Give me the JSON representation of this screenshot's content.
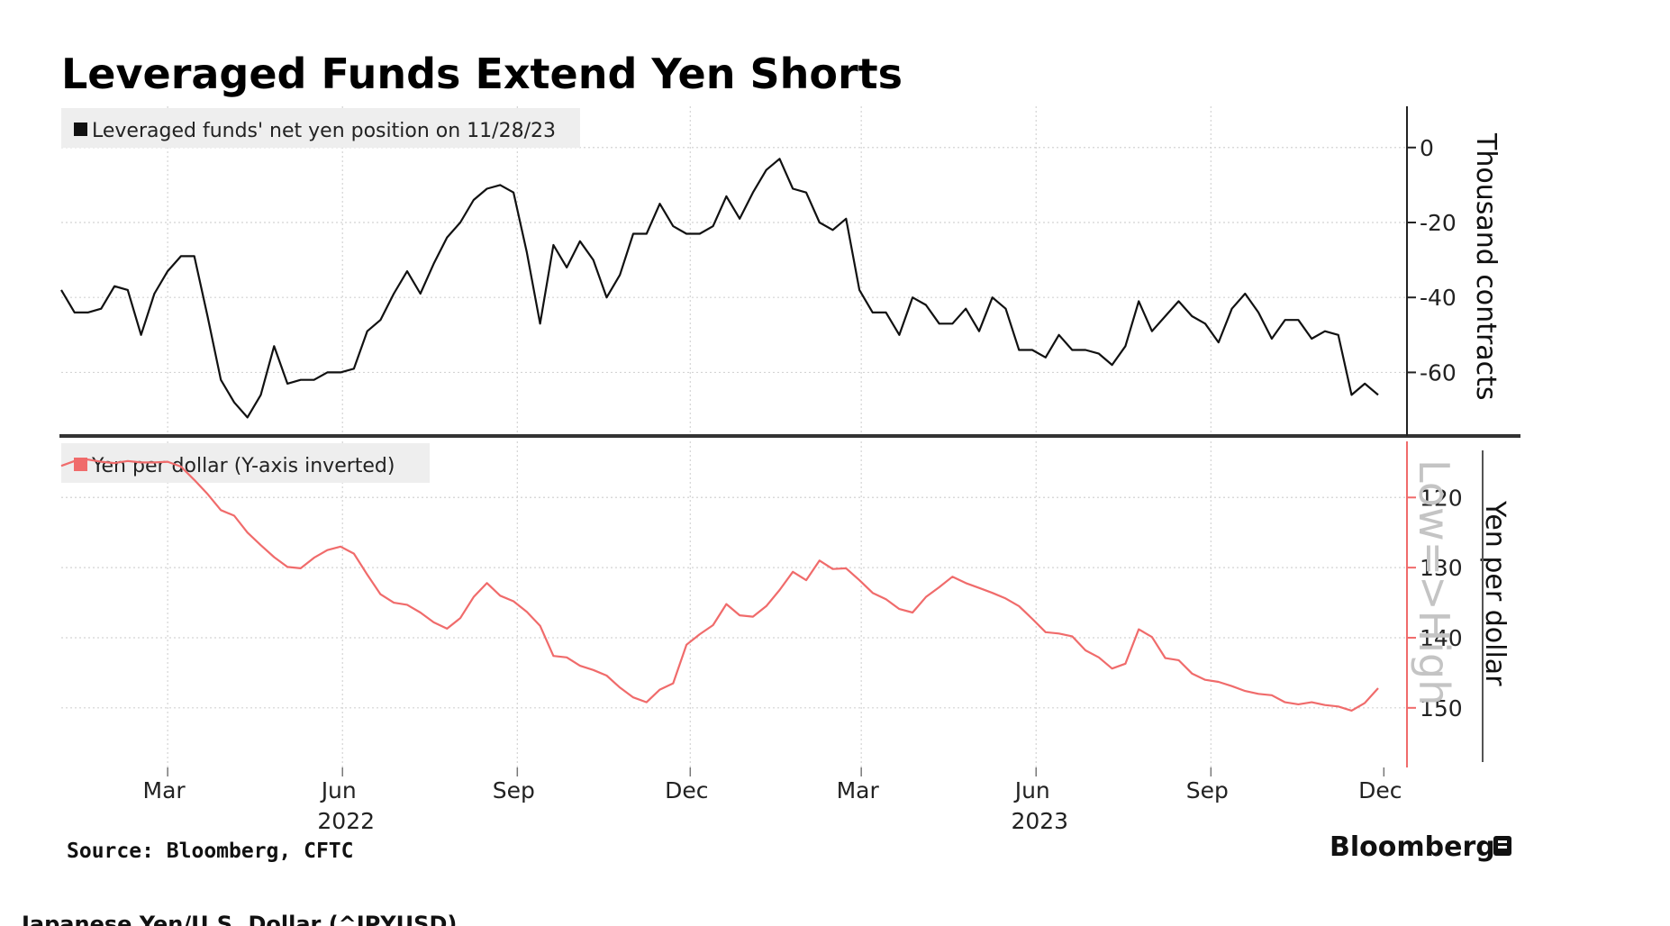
{
  "title": "Leveraged Funds Extend Yen Shorts",
  "source": "Source:  Bloomberg, CFTC",
  "brand": "Bloomberg",
  "footer_label": "Japanese Yen/U.S. Dollar (^JPYUSD)",
  "colors": {
    "series_top": "#111111",
    "series_bottom": "#f06b6b",
    "grid": "#cfcfcf",
    "legend_bg": "#eeeeee"
  },
  "chart_data": [
    {
      "type": "line",
      "legend": "Leveraged funds' net yen position on 11/28/23",
      "ylabel": "Thousand contracts",
      "ylim": [
        -76,
        11
      ],
      "yticks": [
        "0",
        "-20",
        "-40",
        "-60"
      ],
      "yticks_values": [
        0,
        -20,
        -40,
        -60
      ],
      "x_start": "2022-01-04",
      "x_end": "2023-11-28",
      "x_step_days": 7,
      "series": [
        {
          "values": [
            -38,
            -44,
            -44,
            -43,
            -37,
            -38,
            -50,
            -39,
            -33,
            -29,
            -29,
            -45,
            -62,
            -68,
            -72,
            -66,
            -53,
            -63,
            -62,
            -62,
            -60,
            -60,
            -59,
            -49,
            -46,
            -39,
            -33,
            -39,
            -31,
            -24,
            -20,
            -14,
            -11,
            -10,
            -12,
            -28,
            -47,
            -26,
            -32,
            -25,
            -30,
            -40,
            -34,
            -23,
            -23,
            -15,
            -21,
            -23,
            -23,
            -21,
            -13,
            -19,
            -12,
            -6,
            -3,
            -11,
            -12,
            -20,
            -22,
            -19,
            -38,
            -44,
            -44,
            -50,
            -40,
            -42,
            -47,
            -47,
            -43,
            -49,
            -40,
            -43,
            -54,
            -54,
            -56,
            -50,
            -54,
            -54,
            -55,
            -58,
            -53,
            -41,
            -49,
            -45,
            -41,
            -45,
            -47,
            -52,
            -43,
            -39,
            -44,
            -51,
            -46,
            -46,
            -51,
            -49,
            -50,
            -66,
            -63,
            -66
          ]
        }
      ]
    },
    {
      "type": "line",
      "legend": "Yen per dollar (Y-axis inverted)",
      "ylabel": "Yen per dollar",
      "ylim": [
        158.5,
        112
      ],
      "inverted": true,
      "yticks": [
        "120",
        "130",
        "140",
        "150"
      ],
      "yticks_values": [
        120,
        130,
        140,
        150
      ],
      "annotation": "Low=>High",
      "x_start": "2022-01-04",
      "x_end": "2023-11-28",
      "x_step_days": 7,
      "series": [
        {
          "values": [
            115.5,
            114.8,
            114.6,
            114.9,
            115.1,
            114.8,
            115.0,
            115.0,
            114.9,
            115.6,
            117.5,
            119.5,
            121.8,
            122.6,
            125.0,
            126.8,
            128.5,
            129.9,
            130.1,
            128.6,
            127.5,
            127.0,
            128.0,
            131.0,
            133.8,
            135.0,
            135.3,
            136.4,
            137.8,
            138.7,
            137.2,
            134.2,
            132.2,
            134.0,
            134.8,
            136.3,
            138.3,
            142.6,
            142.8,
            144.0,
            144.6,
            145.4,
            147.1,
            148.5,
            149.2,
            147.4,
            146.5,
            141.0,
            139.5,
            138.2,
            135.2,
            136.8,
            137.0,
            135.5,
            133.2,
            130.6,
            131.8,
            129.0,
            130.2,
            130.1,
            131.8,
            133.6,
            134.5,
            135.9,
            136.4,
            134.2,
            132.8,
            131.3,
            132.2,
            132.9,
            133.6,
            134.4,
            135.5,
            137.3,
            139.2,
            139.4,
            139.8,
            141.8,
            142.8,
            144.4,
            143.7,
            138.8,
            139.9,
            142.9,
            143.2,
            145.1,
            146.0,
            146.3,
            146.9,
            147.6,
            148.0,
            148.2,
            149.2,
            149.5,
            149.2,
            149.6,
            149.8,
            150.4,
            149.3,
            147.2
          ]
        }
      ]
    }
  ],
  "x_axis": {
    "month_labels": [
      {
        "label": "Mar",
        "date": "2022-03-01"
      },
      {
        "label": "Jun",
        "date": "2022-06-01"
      },
      {
        "label": "Sep",
        "date": "2022-09-01"
      },
      {
        "label": "Dec",
        "date": "2022-12-01"
      },
      {
        "label": "Mar",
        "date": "2023-03-01"
      },
      {
        "label": "Jun",
        "date": "2023-06-01"
      },
      {
        "label": "Sep",
        "date": "2023-09-01"
      },
      {
        "label": "Dec",
        "date": "2023-12-01"
      }
    ],
    "year_labels": [
      {
        "label": "2022",
        "date": "2022-06-01"
      },
      {
        "label": "2023",
        "date": "2023-06-01"
      }
    ]
  }
}
